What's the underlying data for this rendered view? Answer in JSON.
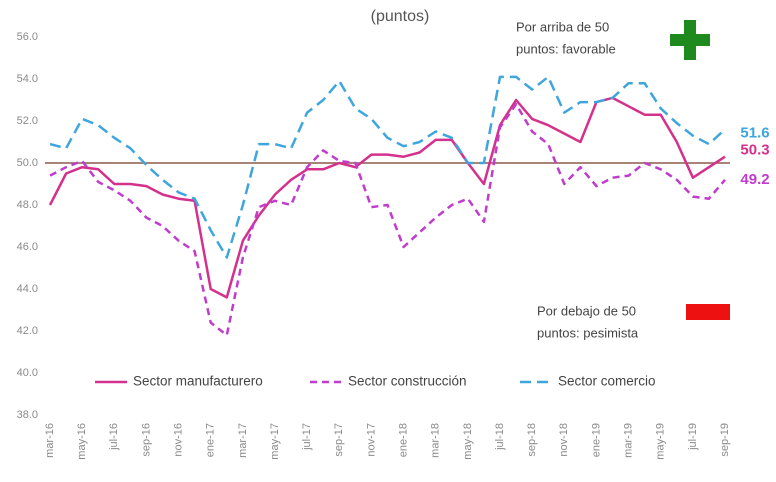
{
  "chart_data": {
    "type": "line",
    "title": "(puntos)",
    "categories": [
      "mar-16",
      null,
      "may-16",
      null,
      "jul-16",
      null,
      "sep-16",
      null,
      "nov-16",
      null,
      "ene-17",
      null,
      "mar-17",
      null,
      "may-17",
      null,
      "jul-17",
      null,
      "sep-17",
      null,
      "nov-17",
      null,
      "ene-18",
      null,
      "mar-18",
      null,
      "may-18",
      null,
      "jul-18",
      null,
      "sep-18",
      null,
      "nov-18",
      null,
      "ene-19",
      null,
      "mar-19",
      null,
      "may-19",
      null,
      "jul-19",
      null,
      "sep-19"
    ],
    "series": [
      {
        "name": "Sector manufacturero",
        "color": "#d4318c",
        "style": "solid",
        "values": [
          48.0,
          49.5,
          49.8,
          49.7,
          49.0,
          49.0,
          48.9,
          48.5,
          48.3,
          48.2,
          44.0,
          43.6,
          46.3,
          47.5,
          48.5,
          49.2,
          49.7,
          49.7,
          50.0,
          49.8,
          50.4,
          50.4,
          50.3,
          50.5,
          51.1,
          51.1,
          50.0,
          49.0,
          51.8,
          53.0,
          52.1,
          51.8,
          51.4,
          51.0,
          52.9,
          53.1,
          52.7,
          52.3,
          52.3,
          51.0,
          49.3,
          49.8,
          50.3
        ]
      },
      {
        "name": "Sector construcción",
        "color": "#c03ccc",
        "style": "dashed",
        "values": [
          49.4,
          49.8,
          50.1,
          49.1,
          48.7,
          48.2,
          47.4,
          47.0,
          46.3,
          45.8,
          42.4,
          41.8,
          45.5,
          47.9,
          48.2,
          48.0,
          49.8,
          50.6,
          50.1,
          50.0,
          47.9,
          48.0,
          46.0,
          46.7,
          47.4,
          48.0,
          48.3,
          47.2,
          51.7,
          52.8,
          51.5,
          50.9,
          49.0,
          49.8,
          48.9,
          49.3,
          49.4,
          50.0,
          49.7,
          49.2,
          48.4,
          48.3,
          49.2
        ]
      },
      {
        "name": "Sector comercio",
        "color": "#3ea6dc",
        "style": "longdash",
        "values": [
          50.9,
          50.7,
          52.1,
          51.8,
          51.2,
          50.7,
          49.9,
          49.2,
          48.6,
          48.3,
          46.8,
          45.5,
          48.0,
          50.9,
          50.9,
          50.7,
          52.4,
          53.0,
          53.9,
          52.6,
          52.1,
          51.2,
          50.8,
          51.0,
          51.5,
          51.2,
          50.0,
          50.0,
          54.1,
          54.1,
          53.5,
          54.1,
          52.4,
          52.9,
          52.9,
          53.1,
          53.8,
          53.8,
          52.6,
          51.9,
          51.3,
          50.9,
          51.6
        ]
      }
    ],
    "ylim": [
      38,
      56
    ],
    "yticks": [
      {
        "value": 38,
        "label": "38.0"
      },
      {
        "value": 40,
        "label": "40.0"
      },
      {
        "value": 42,
        "label": "42.0"
      },
      {
        "value": 44,
        "label": "44.0"
      },
      {
        "value": 46,
        "label": "46.0"
      },
      {
        "value": 48,
        "label": "48.0"
      },
      {
        "value": 50,
        "label": "50.0"
      },
      {
        "value": 52,
        "label": "52.0"
      },
      {
        "value": 54,
        "label": "54.0"
      },
      {
        "value": 56,
        "label": "56.0"
      }
    ],
    "grid": false,
    "reference_line": {
      "value": 50,
      "color": "#8b5a4a"
    },
    "annotations": [
      {
        "text": [
          "Por arriba de 50",
          "puntos: favorable"
        ],
        "icon_color": "#1e8a1e"
      },
      {
        "text": [
          "Por debajo de 50",
          "puntos: pesimista"
        ],
        "icon_color": "#ee1111"
      }
    ]
  }
}
